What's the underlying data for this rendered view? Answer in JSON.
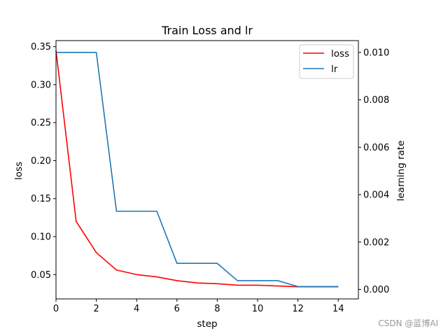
{
  "chart_data": {
    "type": "line",
    "title": "Train Loss and lr",
    "xlabel": "step",
    "ylabel_left": "loss",
    "ylabel_right": "learning rate",
    "xlim": [
      0,
      15
    ],
    "ylim_left": [
      0.018,
      0.358
    ],
    "ylim_right": [
      -0.0004,
      0.0105
    ],
    "x_ticks": [
      0,
      2,
      4,
      6,
      8,
      10,
      12,
      14
    ],
    "x_tick_labels": [
      "0",
      "2",
      "4",
      "6",
      "8",
      "10",
      "12",
      "14"
    ],
    "y_left_ticks": [
      0.05,
      0.1,
      0.15,
      0.2,
      0.25,
      0.3,
      0.35
    ],
    "y_left_tick_labels": [
      "0.05",
      "0.10",
      "0.15",
      "0.20",
      "0.25",
      "0.30",
      "0.35"
    ],
    "y_right_ticks": [
      0.0,
      0.002,
      0.004,
      0.006,
      0.008,
      0.01
    ],
    "y_right_tick_labels": [
      "0.000",
      "0.002",
      "0.004",
      "0.006",
      "0.008",
      "0.010"
    ],
    "grid": false,
    "legend_position": "top-right",
    "x": [
      0,
      1,
      2,
      3,
      4,
      5,
      6,
      7,
      8,
      9,
      10,
      11,
      12,
      13,
      14
    ],
    "series": [
      {
        "name": "loss",
        "axis": "left",
        "color": "#ff0000",
        "values": [
          0.345,
          0.12,
          0.079,
          0.056,
          0.05,
          0.047,
          0.042,
          0.039,
          0.038,
          0.036,
          0.036,
          0.035,
          0.034,
          0.034,
          0.034
        ]
      },
      {
        "name": "lr",
        "axis": "right",
        "color": "#1f77b4",
        "values": [
          0.01,
          0.01,
          0.01,
          0.0033,
          0.0033,
          0.0033,
          0.0011,
          0.0011,
          0.0011,
          0.00037,
          0.00037,
          0.00037,
          0.00012,
          0.00012,
          0.00012
        ]
      }
    ]
  },
  "watermark": "CSDN @蓝博AI"
}
